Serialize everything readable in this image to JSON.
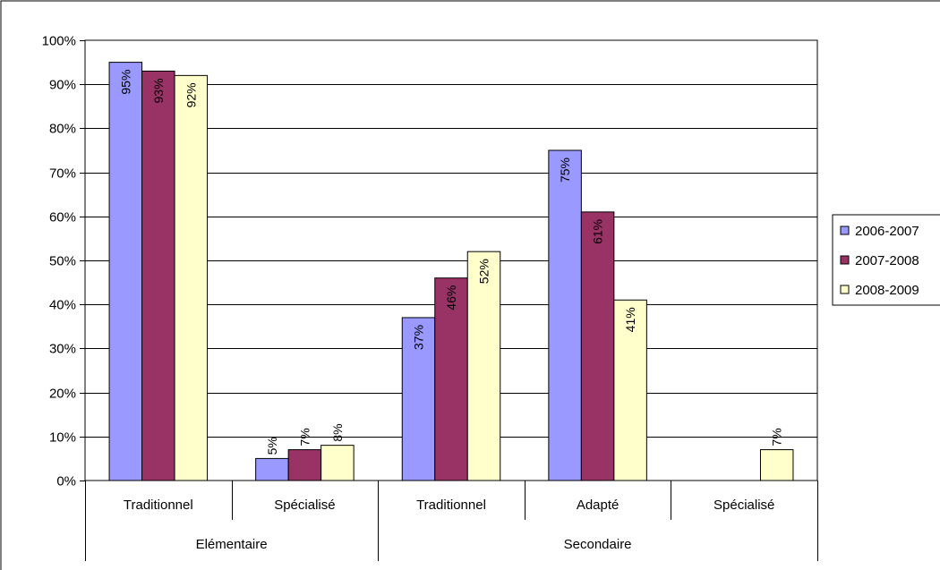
{
  "chart_data": {
    "type": "bar",
    "title": "",
    "xlabel": "",
    "ylabel": "",
    "ylim": [
      0,
      100
    ],
    "y_ticks": [
      "0%",
      "10%",
      "20%",
      "30%",
      "40%",
      "50%",
      "60%",
      "70%",
      "80%",
      "90%",
      "100%"
    ],
    "grid": true,
    "legend_position": "right",
    "categories": [
      "Traditionnel",
      "Spécialisé",
      "Traditionnel",
      "Adapté",
      "Spécialisé"
    ],
    "groups": [
      {
        "label": "Elémentaire",
        "categories": [
          "Traditionnel",
          "Spécialisé"
        ]
      },
      {
        "label": "Secondaire",
        "categories": [
          "Traditionnel",
          "Adapté",
          "Spécialisé"
        ]
      }
    ],
    "series": [
      {
        "name": "2006-2007",
        "color": "#9999FF",
        "values": [
          95,
          5,
          37,
          75,
          null
        ],
        "labels": [
          "95%",
          "5%",
          "37%",
          "75%",
          ""
        ]
      },
      {
        "name": "2007-2008",
        "color": "#993366",
        "values": [
          93,
          7,
          46,
          61,
          null
        ],
        "labels": [
          "93%",
          "7%",
          "46%",
          "61%",
          ""
        ]
      },
      {
        "name": "2008-2009",
        "color": "#FFFFCC",
        "values": [
          92,
          8,
          52,
          41,
          7
        ],
        "labels": [
          "92%",
          "8%",
          "52%",
          "41%",
          "7%"
        ]
      }
    ]
  }
}
